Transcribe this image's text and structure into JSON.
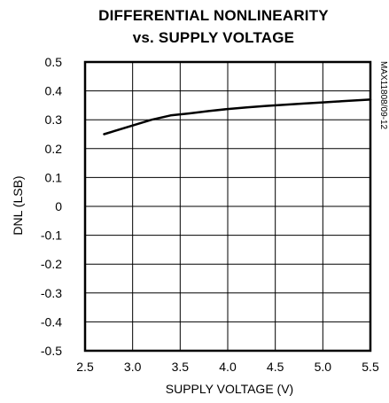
{
  "chart_data": {
    "type": "line",
    "title_lines": [
      "DIFFERENTIAL NONLINEARITY",
      "vs. SUPPLY VOLTAGE"
    ],
    "xlabel": "SUPPLY VOLTAGE (V)",
    "ylabel": "DNL (LSB)",
    "side_note": "MAX11808/09-12",
    "xlim": [
      2.5,
      5.5
    ],
    "ylim": [
      -0.5,
      0.5
    ],
    "x_ticks": [
      2.5,
      3.0,
      3.5,
      4.0,
      4.5,
      5.0,
      5.5
    ],
    "x_tick_labels": [
      "2.5",
      "3.0",
      "3.5",
      "4.0",
      "4.5",
      "5.0",
      "5.5"
    ],
    "y_ticks": [
      0.5,
      0.4,
      0.3,
      0.2,
      0.1,
      0,
      -0.1,
      -0.2,
      -0.3,
      -0.4,
      -0.5
    ],
    "y_tick_labels": [
      "0.5",
      "0.4",
      "0.3",
      "0.2",
      "0.1",
      "0",
      "-0.1",
      "-0.2",
      "-0.3",
      "-0.4",
      "-0.5"
    ],
    "grid": true,
    "series": [
      {
        "x": [
          2.7,
          3.0,
          3.2,
          3.4,
          3.6,
          3.8,
          4.0,
          4.2,
          4.4,
          4.6,
          4.8,
          5.0,
          5.2,
          5.5
        ],
        "y": [
          0.25,
          0.28,
          0.3,
          0.315,
          0.322,
          0.33,
          0.337,
          0.343,
          0.348,
          0.352,
          0.356,
          0.36,
          0.364,
          0.37
        ]
      }
    ]
  }
}
